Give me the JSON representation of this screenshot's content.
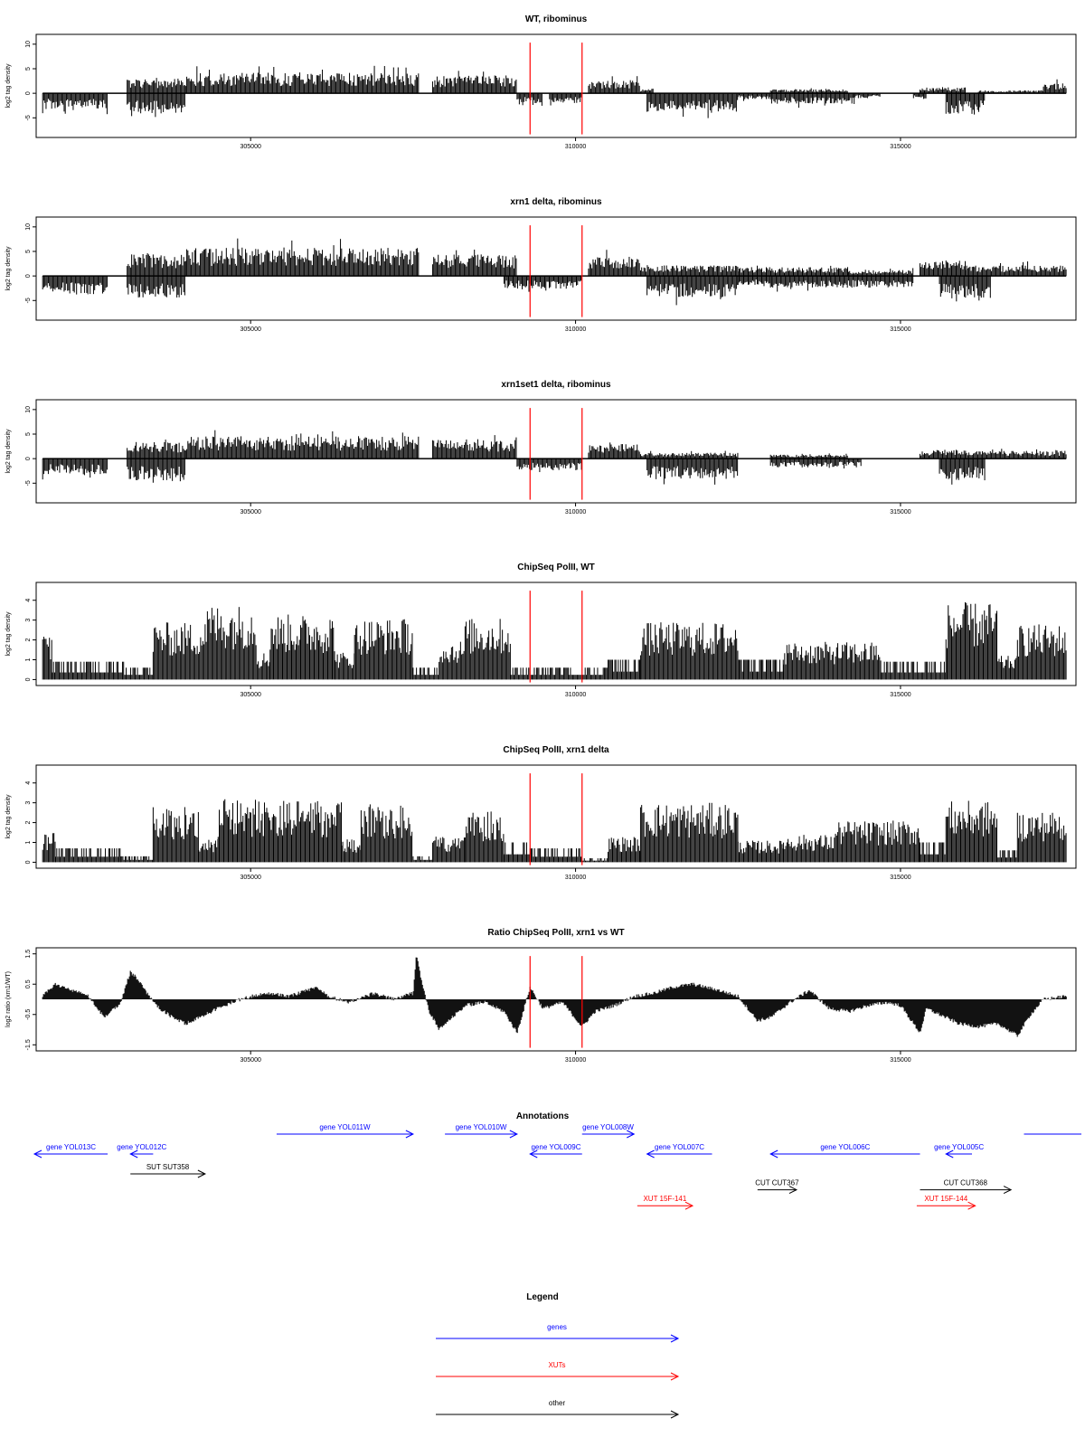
{
  "colors": {
    "gene": "#0000ff",
    "xut": "#ff0000",
    "other": "#000000",
    "marker": "#ff0000",
    "bars": "#000000"
  },
  "chart_data": [
    {
      "type": "bar",
      "title": "WT, ribominus",
      "ylabel": "log2 tag density",
      "xlim": [
        301700,
        317700
      ],
      "ylim": [
        -9,
        12
      ],
      "yticks": [
        -5,
        0,
        5,
        10
      ],
      "xticks": [
        305000,
        310000,
        315000
      ],
      "markers": [
        309300,
        310100
      ],
      "plus_segments": [
        [
          303100,
          304000,
          3.0
        ],
        [
          304000,
          307600,
          4.2
        ],
        [
          307800,
          309100,
          3.6
        ],
        [
          310200,
          311000,
          2.6
        ],
        [
          311000,
          311200,
          1.0
        ],
        [
          313000,
          314200,
          0.8
        ],
        [
          315300,
          316000,
          1.2
        ],
        [
          316200,
          317200,
          0.6
        ],
        [
          317200,
          317550,
          2.2
        ]
      ],
      "minus_segments": [
        [
          301800,
          302800,
          -3.2
        ],
        [
          303100,
          304000,
          -4.2
        ],
        [
          309100,
          309500,
          -2.0
        ],
        [
          309600,
          310100,
          -2.0
        ],
        [
          311100,
          312500,
          -3.8
        ],
        [
          312500,
          313000,
          -1.2
        ],
        [
          313000,
          314300,
          -2.2
        ],
        [
          314300,
          314700,
          -1.0
        ],
        [
          315200,
          315400,
          -1.2
        ],
        [
          315700,
          316300,
          -4.2
        ]
      ]
    },
    {
      "type": "bar",
      "title": "xrn1 delta, ribominus",
      "ylabel": "log2 tag density",
      "xlim": [
        301700,
        317700
      ],
      "ylim": [
        -9,
        12
      ],
      "yticks": [
        -5,
        0,
        5,
        10
      ],
      "xticks": [
        305000,
        310000,
        315000
      ],
      "markers": [
        309300,
        310100
      ],
      "plus_segments": [
        [
          303100,
          304000,
          4.5
        ],
        [
          304000,
          307600,
          5.8
        ],
        [
          307800,
          309100,
          4.4
        ],
        [
          310200,
          311000,
          4.0
        ],
        [
          311000,
          312500,
          2.2
        ],
        [
          312500,
          314200,
          1.8
        ],
        [
          314200,
          315200,
          1.2
        ],
        [
          315300,
          316000,
          3.2
        ],
        [
          316000,
          317550,
          2.2
        ]
      ],
      "minus_segments": [
        [
          301800,
          302800,
          -3.8
        ],
        [
          303100,
          304000,
          -4.4
        ],
        [
          308900,
          310100,
          -2.6
        ],
        [
          311100,
          312500,
          -4.4
        ],
        [
          312500,
          313000,
          -2.0
        ],
        [
          313000,
          315200,
          -2.4
        ],
        [
          315600,
          316400,
          -4.6
        ]
      ]
    },
    {
      "type": "bar",
      "title": "xrn1set1 delta, ribominus",
      "ylabel": "log2 tag density",
      "xlim": [
        301700,
        317700
      ],
      "ylim": [
        -9,
        12
      ],
      "yticks": [
        -5,
        0,
        5,
        10
      ],
      "xticks": [
        305000,
        310000,
        315000
      ],
      "markers": [
        309300,
        310100
      ],
      "plus_segments": [
        [
          303100,
          304000,
          3.4
        ],
        [
          304000,
          307600,
          4.6
        ],
        [
          307800,
          309100,
          4.0
        ],
        [
          310200,
          311000,
          3.0
        ],
        [
          311000,
          312500,
          1.2
        ],
        [
          313000,
          314200,
          0.8
        ],
        [
          315300,
          316000,
          1.8
        ],
        [
          316000,
          317550,
          1.6
        ]
      ],
      "minus_segments": [
        [
          301800,
          302800,
          -3.2
        ],
        [
          303100,
          304000,
          -4.4
        ],
        [
          309100,
          310100,
          -2.4
        ],
        [
          311100,
          312500,
          -4.2
        ],
        [
          313000,
          314400,
          -1.8
        ],
        [
          315600,
          316300,
          -4.6
        ]
      ]
    },
    {
      "type": "bar",
      "title": "ChipSeq PolII, WT",
      "ylabel": "log2 tag density",
      "xlim": [
        301700,
        317700
      ],
      "ylim": [
        -0.3,
        4.9
      ],
      "yticks": [
        0,
        1,
        2,
        3,
        4
      ],
      "xticks": [
        305000,
        310000,
        315000
      ],
      "markers": [
        309300,
        310100
      ],
      "segments": [
        [
          301800,
          301950,
          2.4
        ],
        [
          301950,
          303050,
          0.9
        ],
        [
          303050,
          303500,
          0.6
        ],
        [
          303500,
          304300,
          2.9
        ],
        [
          304300,
          305100,
          3.8
        ],
        [
          305100,
          305300,
          1.4
        ],
        [
          305300,
          306300,
          3.3
        ],
        [
          306300,
          306600,
          1.4
        ],
        [
          306600,
          307500,
          3.1
        ],
        [
          307500,
          307900,
          0.6
        ],
        [
          307900,
          308300,
          2.0
        ],
        [
          308300,
          309000,
          3.1
        ],
        [
          309000,
          310500,
          0.6
        ],
        [
          310500,
          311000,
          1.0
        ],
        [
          311000,
          312500,
          2.9
        ],
        [
          312500,
          313200,
          1.0
        ],
        [
          313200,
          314700,
          1.9
        ],
        [
          314700,
          315700,
          0.9
        ],
        [
          315700,
          316500,
          3.9
        ],
        [
          316500,
          316800,
          1.2
        ],
        [
          316800,
          317550,
          2.8
        ]
      ]
    },
    {
      "type": "bar",
      "title": "ChipSeq PolII, xrn1 delta",
      "ylabel": "log2 tag density",
      "xlim": [
        301700,
        317700
      ],
      "ylim": [
        -0.3,
        4.9
      ],
      "yticks": [
        0,
        1,
        2,
        3,
        4
      ],
      "xticks": [
        305000,
        310000,
        315000
      ],
      "markers": [
        309300,
        310100
      ],
      "segments": [
        [
          301800,
          302000,
          1.5
        ],
        [
          302000,
          303000,
          0.7
        ],
        [
          303000,
          303500,
          0.3
        ],
        [
          303500,
          304200,
          2.8
        ],
        [
          304200,
          304500,
          1.2
        ],
        [
          304500,
          305300,
          3.2
        ],
        [
          305300,
          306400,
          3.1
        ],
        [
          306400,
          306700,
          1.2
        ],
        [
          306700,
          307500,
          3.0
        ],
        [
          307500,
          307800,
          0.3
        ],
        [
          307800,
          308300,
          1.3
        ],
        [
          308300,
          308900,
          2.6
        ],
        [
          308900,
          309300,
          1.0
        ],
        [
          309300,
          310100,
          0.7
        ],
        [
          310100,
          310500,
          0.2
        ],
        [
          310500,
          311000,
          1.3
        ],
        [
          311000,
          312500,
          3.0
        ],
        [
          312500,
          313200,
          1.1
        ],
        [
          313200,
          314000,
          1.4
        ],
        [
          314000,
          315300,
          2.1
        ],
        [
          315300,
          315700,
          1.0
        ],
        [
          315700,
          316500,
          3.1
        ],
        [
          316500,
          316800,
          0.6
        ],
        [
          316800,
          317550,
          2.6
        ]
      ]
    },
    {
      "type": "area",
      "title": "Ratio ChipSeq PolII, xrn1 vs WT",
      "ylabel": "log2 ratio (xrn1/WT)",
      "xlim": [
        301700,
        317700
      ],
      "ylim": [
        -1.7,
        1.7
      ],
      "yticks": [
        -1.5,
        -0.5,
        0.5,
        1.5
      ],
      "xticks": [
        305000,
        310000,
        315000
      ],
      "markers": [
        309300,
        310100
      ],
      "x": [
        301800,
        302000,
        302250,
        302500,
        302750,
        303000,
        303150,
        303250,
        303400,
        303600,
        303800,
        304000,
        304300,
        304700,
        305000,
        305300,
        305600,
        306000,
        306200,
        306500,
        306900,
        307200,
        307500,
        307550,
        307650,
        307750,
        307900,
        308100,
        308300,
        308600,
        308900,
        309100,
        309300,
        309500,
        309800,
        310100,
        310300,
        310600,
        310900,
        311200,
        311500,
        311800,
        312200,
        312500,
        312800,
        313000,
        313300,
        313600,
        313900,
        314200,
        314500,
        314800,
        315000,
        315300,
        315400,
        315600,
        315900,
        316200,
        316500,
        316800,
        317000,
        317200,
        317550
      ],
      "y": [
        0.1,
        0.5,
        0.3,
        0.1,
        -0.6,
        -0.1,
        0.9,
        0.7,
        0.2,
        -0.3,
        -0.6,
        -0.8,
        -0.5,
        -0.1,
        0.1,
        0.2,
        0.1,
        0.4,
        0.1,
        -0.1,
        0.2,
        0.0,
        0.2,
        1.5,
        0.4,
        -0.4,
        -1.0,
        -0.6,
        -0.2,
        -0.1,
        -0.4,
        -1.1,
        0.4,
        -0.3,
        -0.1,
        -0.9,
        -0.4,
        -0.2,
        0.1,
        0.2,
        0.4,
        0.5,
        0.3,
        0.1,
        -0.7,
        -0.6,
        -0.1,
        0.3,
        -0.3,
        -0.4,
        -0.2,
        -0.1,
        -0.2,
        -1.1,
        -0.3,
        -0.5,
        -0.8,
        -0.9,
        -0.8,
        -1.2,
        -0.5,
        0.0,
        0.1
      ]
    }
  ],
  "annotations": {
    "title": "Annotations",
    "features": [
      {
        "label": "gene YOL013C",
        "kind": "gene",
        "start": 301400,
        "end": 302800,
        "strand": "-",
        "row": 0
      },
      {
        "label": "gene YOL012C",
        "kind": "gene",
        "start": 303150,
        "end": 303500,
        "strand": "-",
        "row": 0
      },
      {
        "label": "gene YOL011W",
        "kind": "gene",
        "start": 305400,
        "end": 307500,
        "strand": "+",
        "row": -1
      },
      {
        "label": "gene YOL010W",
        "kind": "gene",
        "start": 307990,
        "end": 309100,
        "strand": "+",
        "row": -1
      },
      {
        "label": "gene YOL009C",
        "kind": "gene",
        "start": 309300,
        "end": 310100,
        "strand": "-",
        "row": 0
      },
      {
        "label": "gene YOL008W",
        "kind": "gene",
        "start": 310100,
        "end": 310900,
        "strand": "+",
        "row": -1
      },
      {
        "label": "gene YOL007C",
        "kind": "gene",
        "start": 311100,
        "end": 312100,
        "strand": "-",
        "row": 0
      },
      {
        "label": "gene YOL005C",
        "kind": "gene",
        "start": 315700,
        "end": 316100,
        "strand": "-",
        "row": 0
      },
      {
        "label": "gene YOL006C",
        "kind": "gene",
        "start": 313000,
        "end": 315300,
        "strand": "-",
        "row": 0
      },
      {
        "label": "",
        "kind": "gene",
        "start": 316900,
        "end": 317900,
        "strand": "+",
        "row": -1
      },
      {
        "label": "SUT SUT358",
        "kind": "other",
        "start": 303150,
        "end": 304300,
        "strand": "+",
        "row": 1
      },
      {
        "label": "CUT CUT367",
        "kind": "other",
        "start": 312800,
        "end": 313400,
        "strand": "+",
        "row": 1.8
      },
      {
        "label": "CUT CUT368",
        "kind": "other",
        "start": 315300,
        "end": 316700,
        "strand": "+",
        "row": 1.8
      },
      {
        "label": "XUT 15F-141",
        "kind": "xut",
        "start": 310950,
        "end": 311800,
        "strand": "+",
        "row": 2.6
      },
      {
        "label": "XUT 15F-144",
        "kind": "xut",
        "start": 315250,
        "end": 316150,
        "strand": "+",
        "row": 2.6
      }
    ]
  },
  "legend": {
    "title": "Legend",
    "items": [
      {
        "label": "genes",
        "kind": "gene"
      },
      {
        "label": "XUTs",
        "kind": "xut"
      },
      {
        "label": "other",
        "kind": "other"
      }
    ]
  }
}
